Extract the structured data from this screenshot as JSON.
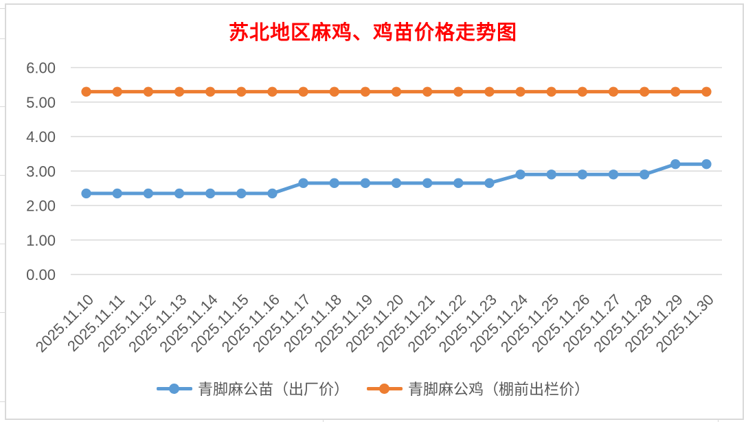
{
  "chart_data": {
    "type": "line",
    "title": "苏北地区麻鸡、鸡苗价格走势图",
    "title_color": "#FF0000",
    "categories": [
      "2025.11.10",
      "2025.11.11",
      "2025.11.12",
      "2025.11.13",
      "2025.11.14",
      "2025.11.15",
      "2025.11.16",
      "2025.11.17",
      "2025.11.18",
      "2025.11.19",
      "2025.11.20",
      "2025.11.21",
      "2025.11.22",
      "2025.11.23",
      "2025.11.24",
      "2025.11.25",
      "2025.11.26",
      "2025.11.27",
      "2025.11.28",
      "2025.11.29",
      "2025.11.30"
    ],
    "series": [
      {
        "name": "青脚麻公苗（出厂价）",
        "color": "#5B9BD5",
        "marker": "circle",
        "values": [
          2.35,
          2.35,
          2.35,
          2.35,
          2.35,
          2.35,
          2.35,
          2.65,
          2.65,
          2.65,
          2.65,
          2.65,
          2.65,
          2.65,
          2.9,
          2.9,
          2.9,
          2.9,
          2.9,
          3.2,
          3.2
        ]
      },
      {
        "name": "青脚麻公鸡（棚前出栏价）",
        "color": "#ED7D31",
        "marker": "circle",
        "values": [
          5.3,
          5.3,
          5.3,
          5.3,
          5.3,
          5.3,
          5.3,
          5.3,
          5.3,
          5.3,
          5.3,
          5.3,
          5.3,
          5.3,
          5.3,
          5.3,
          5.3,
          5.3,
          5.3,
          5.3,
          5.3
        ]
      }
    ],
    "ylim": [
      0,
      6
    ],
    "ytick_labels": [
      "0.00",
      "1.00",
      "2.00",
      "3.00",
      "4.00",
      "5.00",
      "6.00"
    ],
    "xlabel": "",
    "ylabel": "",
    "grid": true,
    "legend_position": "bottom",
    "axis_text_color": "#595959",
    "gridline_color": "#D9D9D9"
  }
}
